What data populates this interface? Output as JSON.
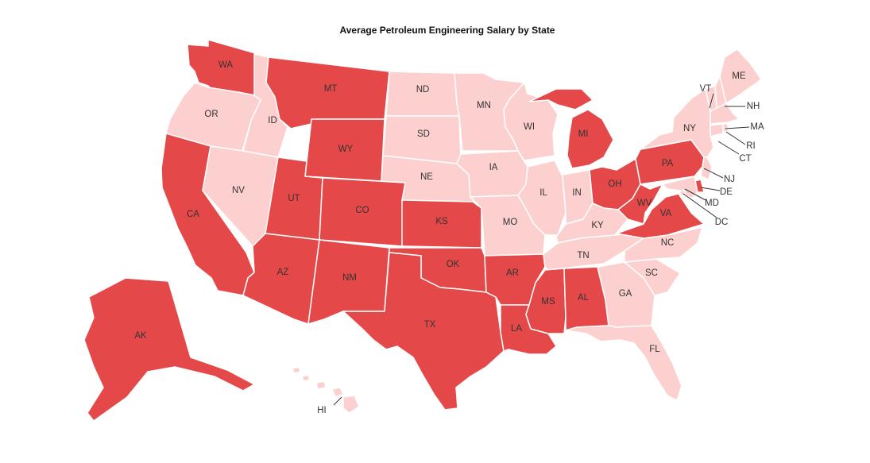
{
  "title": "Average Petroleum Engineering Salary by State",
  "colors": {
    "high": "#e54848",
    "low": "#fdd0d0",
    "border": "#ffffff"
  },
  "chart_data": {
    "type": "choropleth",
    "title": "Average Petroleum Engineering Salary by State",
    "legend": "none",
    "states": [
      {
        "code": "WA",
        "class": "high"
      },
      {
        "code": "OR",
        "class": "low"
      },
      {
        "code": "CA",
        "class": "high"
      },
      {
        "code": "ID",
        "class": "low"
      },
      {
        "code": "NV",
        "class": "low"
      },
      {
        "code": "MT",
        "class": "high"
      },
      {
        "code": "WY",
        "class": "high"
      },
      {
        "code": "UT",
        "class": "high"
      },
      {
        "code": "AZ",
        "class": "high"
      },
      {
        "code": "CO",
        "class": "high"
      },
      {
        "code": "NM",
        "class": "high"
      },
      {
        "code": "ND",
        "class": "low"
      },
      {
        "code": "SD",
        "class": "low"
      },
      {
        "code": "NE",
        "class": "low"
      },
      {
        "code": "KS",
        "class": "high"
      },
      {
        "code": "OK",
        "class": "high"
      },
      {
        "code": "TX",
        "class": "high"
      },
      {
        "code": "MN",
        "class": "low"
      },
      {
        "code": "IA",
        "class": "low"
      },
      {
        "code": "MO",
        "class": "low"
      },
      {
        "code": "AR",
        "class": "high"
      },
      {
        "code": "LA",
        "class": "high"
      },
      {
        "code": "WI",
        "class": "low"
      },
      {
        "code": "IL",
        "class": "low"
      },
      {
        "code": "MI",
        "class": "high"
      },
      {
        "code": "IN",
        "class": "low"
      },
      {
        "code": "OH",
        "class": "high"
      },
      {
        "code": "KY",
        "class": "low"
      },
      {
        "code": "TN",
        "class": "low"
      },
      {
        "code": "MS",
        "class": "high"
      },
      {
        "code": "AL",
        "class": "high"
      },
      {
        "code": "GA",
        "class": "low"
      },
      {
        "code": "FL",
        "class": "low"
      },
      {
        "code": "SC",
        "class": "low"
      },
      {
        "code": "NC",
        "class": "low"
      },
      {
        "code": "VA",
        "class": "high"
      },
      {
        "code": "WV",
        "class": "high"
      },
      {
        "code": "PA",
        "class": "high"
      },
      {
        "code": "NY",
        "class": "low"
      },
      {
        "code": "VT",
        "class": "low"
      },
      {
        "code": "NH",
        "class": "low"
      },
      {
        "code": "ME",
        "class": "low"
      },
      {
        "code": "MA",
        "class": "low"
      },
      {
        "code": "RI",
        "class": "low"
      },
      {
        "code": "CT",
        "class": "low"
      },
      {
        "code": "NJ",
        "class": "low"
      },
      {
        "code": "DE",
        "class": "high"
      },
      {
        "code": "MD",
        "class": "low"
      },
      {
        "code": "DC",
        "class": "low"
      },
      {
        "code": "AK",
        "class": "high"
      },
      {
        "code": "HI",
        "class": "low"
      }
    ]
  }
}
